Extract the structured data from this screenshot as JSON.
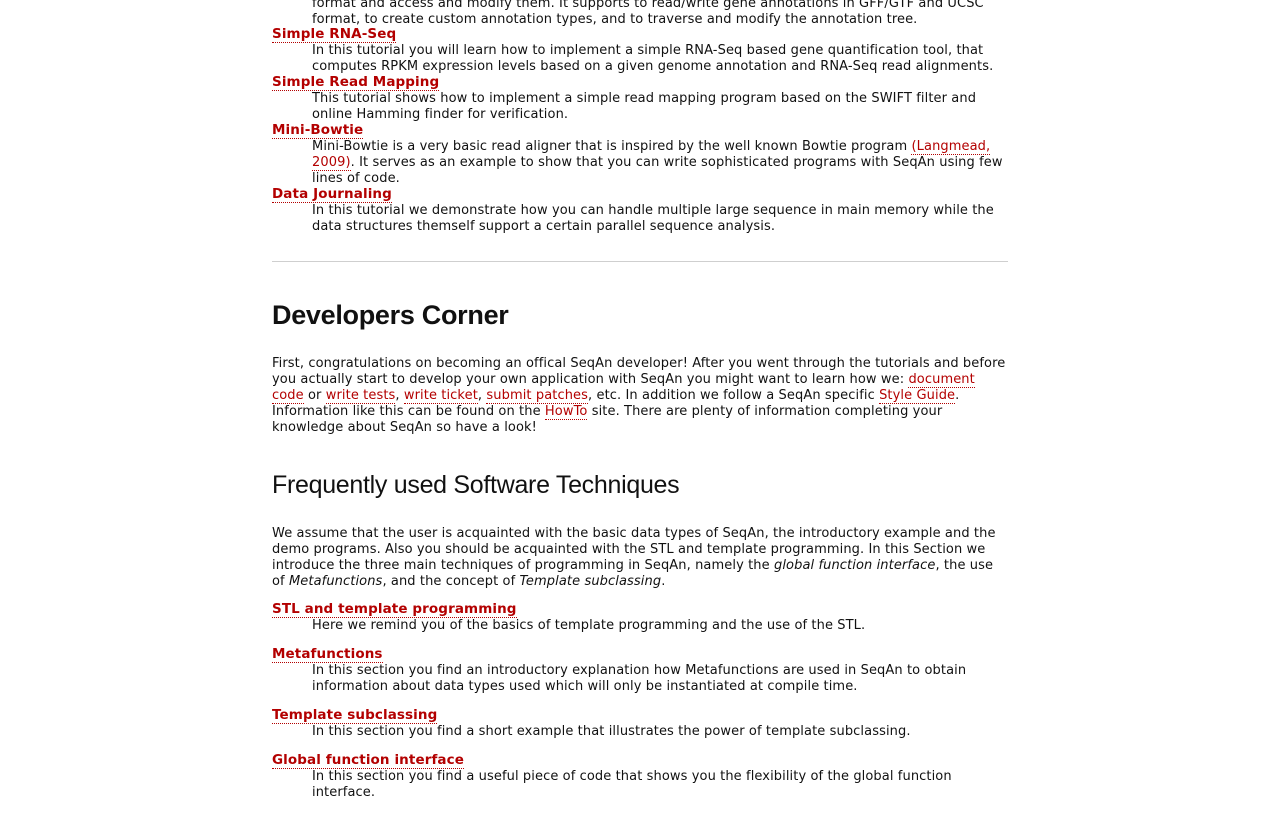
{
  "tutorials": {
    "top_lines": [
      "format and access and modify them. It supports to read/write gene annotations in GFF/GTF and UCSC",
      "format, to create custom annotation types, and to traverse and modify the annotation tree."
    ],
    "items": [
      {
        "title": "Simple RNA-Seq",
        "desc": "In this tutorial you will learn how to implement a simple RNA-Seq based gene quantification tool, that computes RPKM expression levels based on a given genome annotation and RNA-Seq read alignments."
      },
      {
        "title": "Simple Read Mapping",
        "desc": "This tutorial shows how to implement a simple read mapping program based on the SWIFT filter and online Hamming finder for verification."
      },
      {
        "title": "Mini-Bowtie",
        "desc_a": "Mini-Bowtie is a very basic read aligner that is inspired by the well known Bowtie program ",
        "citation": "(Langmead, 2009)",
        "desc_b": ". It serves as an example to show that you can write sophisticated programs with SeqAn using few lines of code."
      },
      {
        "title": "Data Journaling",
        "desc": "In this tutorial we demonstrate how you can handle multiple large sequence in main memory while the data structures themself support a certain parallel sequence analysis."
      }
    ]
  },
  "developers": {
    "heading": "Developers Corner",
    "p1": "First, congratulations on becoming an offical SeqAn developer! After you went through the tutorials and before you actually start to develop your own application with SeqAn you might want to learn how we: ",
    "link_document_code": "document code",
    "or": " or ",
    "link_write_tests": "write tests",
    "comma1": ", ",
    "link_write_ticket": "write ticket",
    "comma2": ", ",
    "link_submit_patches": "submit patches",
    "p2": ", etc. In addition we follow a SeqAn specific ",
    "link_style_guide": "Style Guide",
    "p3": ". Information like this can be found on the ",
    "link_howto": "HowTo",
    "p4": " site. There are plenty of information completing your knowledge about SeqAn so have a look!"
  },
  "techniques": {
    "heading": "Frequently used Software Techniques",
    "p1": "We assume that the user is acquainted with the basic data types of SeqAn, the introductory example and the demo programs. Also you should be acquainted with the STL and template programming. In this Section we introduce the three main techniques of programming in SeqAn, namely the ",
    "em1": "global function interface",
    "p2": ", the use of ",
    "em2": "Metafunctions",
    "p3": ", and the concept of ",
    "em3": "Template subclassing",
    "p4": ".",
    "items": [
      {
        "title": "STL and template programming",
        "desc": "Here we remind you of the basics of template programming and the use of the STL."
      },
      {
        "title": "Metafunctions",
        "desc": "In this section you find an introductory explanation how Metafunctions are used in SeqAn to obtain information about data types used which will only be instantiated at compile time."
      },
      {
        "title": "Template subclassing",
        "desc": "In this section you find a short example that illustrates the power of template subclassing."
      },
      {
        "title": "Global function interface",
        "desc": "In this section you find a useful piece of code that shows you the flexibility of the global function interface."
      }
    ]
  },
  "colors": {
    "link": "#b30000",
    "rule": "#cfcfcf",
    "text": "#111111"
  }
}
